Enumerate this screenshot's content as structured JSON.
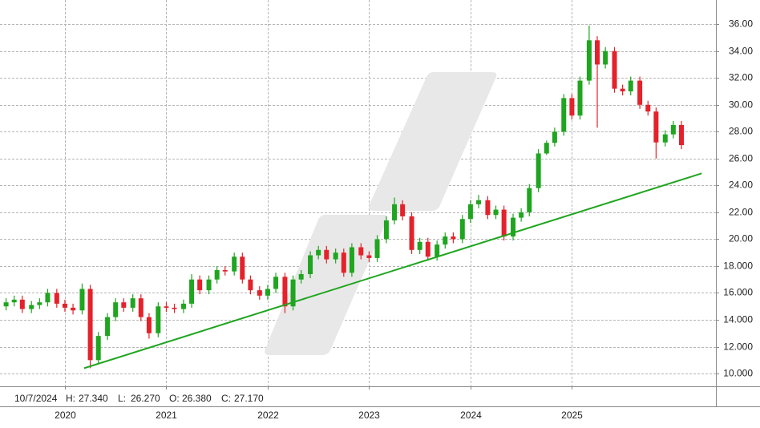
{
  "chart_data": {
    "type": "candlestick",
    "x": [
      2019.42,
      2019.5,
      2019.58,
      2019.67,
      2019.75,
      2019.83,
      2019.92,
      2020,
      2020.08,
      2020.17,
      2020.25,
      2020.33,
      2020.42,
      2020.5,
      2020.58,
      2020.67,
      2020.75,
      2020.83,
      2020.92,
      2021,
      2021.08,
      2021.17,
      2021.25,
      2021.33,
      2021.42,
      2021.5,
      2021.58,
      2021.67,
      2021.75,
      2021.83,
      2021.92,
      2022,
      2022.08,
      2022.17,
      2022.25,
      2022.33,
      2022.42,
      2022.5,
      2022.58,
      2022.67,
      2022.75,
      2022.83,
      2022.92,
      2023,
      2023.08,
      2023.17,
      2023.25,
      2023.33,
      2023.42,
      2023.5,
      2023.58,
      2023.67,
      2023.75,
      2023.83,
      2023.92,
      2024,
      2024.08,
      2024.17,
      2024.25,
      2024.33,
      2024.42,
      2024.5,
      2024.58,
      2024.67,
      2024.75,
      2024.83,
      2024.92,
      2025,
      2025.08,
      2025.17,
      2025.25,
      2025.33,
      2025.42,
      2025.5,
      2025.58,
      2025.67,
      2025.75,
      2025.83,
      2025.92,
      2026,
      2026.08
    ],
    "open": [
      15.0,
      15.3,
      15.5,
      14.8,
      15.1,
      15.3,
      16.0,
      15.2,
      14.9,
      14.7,
      16.3,
      11.0,
      12.8,
      14.2,
      15.3,
      14.9,
      15.6,
      14.2,
      13.0,
      15.0,
      14.9,
      14.8,
      15.2,
      17.0,
      16.2,
      17.0,
      17.7,
      17.6,
      18.7,
      17.0,
      16.2,
      15.8,
      16.3,
      17.2,
      15.0,
      17.0,
      17.4,
      18.8,
      19.2,
      18.5,
      19.0,
      17.5,
      19.4,
      18.8,
      18.6,
      20.0,
      21.4,
      22.6,
      21.7,
      19.2,
      19.8,
      18.7,
      19.6,
      20.2,
      20.0,
      21.5,
      22.6,
      22.9,
      21.8,
      22.2,
      20.2,
      21.6,
      22.0,
      23.8,
      26.38,
      27.17,
      28.0,
      30.5,
      29.2,
      31.8,
      34.8,
      33.0,
      34.0,
      31.2,
      31.0,
      31.8,
      30.0,
      29.5,
      27.2,
      27.8,
      28.5
    ],
    "high": [
      15.6,
      15.8,
      15.8,
      15.4,
      15.6,
      16.3,
      16.3,
      15.5,
      15.2,
      16.7,
      16.6,
      13.1,
      14.5,
      15.6,
      15.6,
      15.9,
      15.9,
      14.5,
      15.3,
      15.3,
      15.2,
      15.5,
      17.4,
      17.3,
      17.3,
      18.0,
      18.0,
      19.0,
      19.0,
      17.3,
      16.5,
      16.6,
      17.5,
      17.5,
      17.3,
      17.7,
      19.1,
      19.5,
      19.5,
      19.3,
      19.3,
      19.7,
      19.7,
      19.1,
      20.3,
      21.7,
      23.1,
      22.9,
      22.0,
      20.1,
      20.1,
      19.9,
      20.5,
      20.5,
      21.8,
      22.9,
      23.3,
      23.2,
      22.5,
      22.5,
      21.9,
      22.3,
      24.1,
      26.7,
      27.34,
      28.3,
      30.8,
      30.8,
      32.1,
      35.9,
      35.1,
      34.3,
      34.3,
      31.5,
      32.1,
      32.1,
      30.3,
      29.8,
      28.1,
      28.8,
      28.8
    ],
    "low": [
      14.7,
      15.0,
      14.5,
      14.5,
      14.8,
      15.0,
      14.9,
      14.6,
      14.4,
      14.4,
      10.4,
      10.7,
      12.5,
      13.9,
      14.6,
      14.6,
      13.9,
      12.6,
      12.7,
      14.6,
      14.5,
      14.5,
      14.9,
      15.9,
      15.9,
      16.7,
      17.3,
      17.3,
      16.7,
      15.9,
      15.5,
      15.5,
      16.0,
      14.5,
      14.7,
      16.7,
      17.1,
      18.5,
      18.2,
      18.2,
      17.2,
      17.2,
      18.5,
      18.3,
      18.3,
      19.7,
      21.1,
      21.4,
      18.9,
      18.9,
      18.4,
      18.4,
      19.3,
      19.7,
      19.7,
      21.2,
      22.3,
      21.5,
      21.5,
      19.9,
      19.9,
      21.3,
      21.7,
      23.5,
      26.27,
      26.9,
      27.7,
      28.9,
      28.9,
      31.5,
      28.3,
      32.7,
      30.9,
      30.7,
      30.7,
      29.7,
      29.2,
      26.0,
      26.9,
      27.5,
      26.7
    ],
    "close": [
      15.3,
      15.5,
      14.8,
      15.1,
      15.3,
      16.0,
      15.2,
      14.9,
      14.7,
      16.3,
      11.0,
      12.8,
      14.2,
      15.3,
      14.9,
      15.6,
      14.2,
      13.0,
      15.0,
      14.9,
      14.8,
      15.2,
      17.0,
      16.2,
      17.0,
      17.7,
      17.6,
      18.7,
      17.0,
      16.2,
      15.8,
      16.3,
      17.2,
      15.0,
      17.0,
      17.4,
      18.8,
      19.2,
      18.5,
      19.0,
      17.5,
      19.4,
      18.8,
      18.6,
      20.0,
      21.4,
      22.6,
      21.7,
      19.2,
      19.8,
      18.7,
      19.6,
      20.2,
      20.0,
      21.5,
      22.6,
      22.9,
      21.8,
      22.2,
      20.2,
      21.6,
      22.0,
      23.8,
      26.38,
      27.17,
      28.0,
      30.5,
      29.2,
      31.8,
      34.8,
      33.0,
      34.0,
      31.2,
      31.0,
      31.8,
      30.0,
      29.5,
      27.2,
      27.8,
      28.5,
      27.0
    ],
    "up_color": "#1fa51f",
    "down_color": "#e3222b",
    "trendline": {
      "x": [
        2020.19,
        2026.28
      ],
      "y": [
        10.4,
        24.9
      ],
      "color": "#1fa51f"
    },
    "xlim": [
      2019.36,
      2026.42
    ],
    "xticks": [
      2020,
      2021,
      2022,
      2023,
      2024,
      2025
    ],
    "ylim": [
      9.05,
      37.8
    ],
    "yticks": [
      {
        "value": 10,
        "label": "10.000"
      },
      {
        "value": 12,
        "label": "12.000"
      },
      {
        "value": 14,
        "label": "14.000"
      },
      {
        "value": 16,
        "label": "16.000"
      },
      {
        "value": 18,
        "label": "18.000"
      },
      {
        "value": 20,
        "label": "20.00"
      },
      {
        "value": 22,
        "label": "22.00"
      },
      {
        "value": 24,
        "label": "24.00"
      },
      {
        "value": 26,
        "label": "26.00"
      },
      {
        "value": 28,
        "label": "28.00"
      },
      {
        "value": 30,
        "label": "30.00"
      },
      {
        "value": 32,
        "label": "32.00"
      },
      {
        "value": 34,
        "label": "34.00"
      },
      {
        "value": 36,
        "label": "36.00"
      }
    ],
    "grid": true,
    "info": {
      "date": "10/7/2024",
      "fields": [
        {
          "label": "H:",
          "value": "27.340"
        },
        {
          "label": "L:",
          "value": "26.270"
        },
        {
          "label": "O:",
          "value": "26.380"
        },
        {
          "label": "C:",
          "value": "27.170"
        }
      ]
    }
  }
}
